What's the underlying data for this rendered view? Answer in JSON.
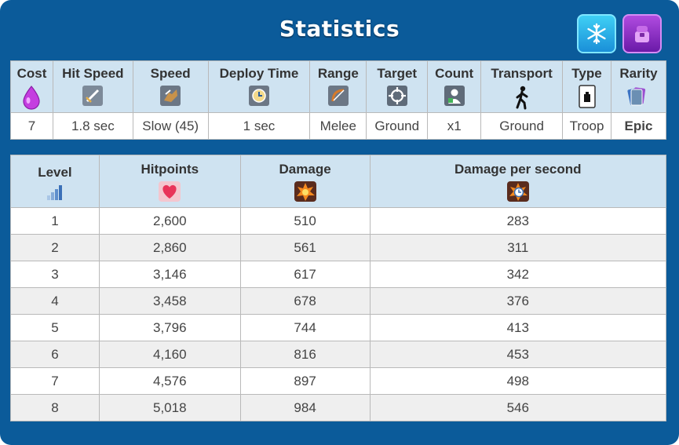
{
  "title": "Statistics",
  "badges": [
    {
      "name": "freeze-icon",
      "color": "#2aaee8"
    },
    {
      "name": "epic-chest-icon",
      "color": "#8a2bc8"
    }
  ],
  "stats": {
    "headers": [
      "Cost",
      "Hit Speed",
      "Speed",
      "Deploy Time",
      "Range",
      "Target",
      "Count",
      "Transport",
      "Type",
      "Rarity"
    ],
    "values": [
      "7",
      "1.8 sec",
      "Slow (45)",
      "1 sec",
      "Melee",
      "Ground",
      "x1",
      "Ground",
      "Troop",
      "Epic"
    ],
    "icons": [
      "elixir-drop-icon",
      "sword-icon",
      "boot-icon",
      "clock-icon",
      "bow-icon",
      "crosshair-icon",
      "person-icon",
      "walking-icon",
      "card-icon",
      "cards-icon"
    ]
  },
  "levels": {
    "headers": [
      "Level",
      "Hitpoints",
      "Damage",
      "Damage per second"
    ],
    "icons": [
      "signal-bars-icon",
      "heart-icon",
      "explosion-icon",
      "explosion-clock-icon"
    ],
    "rows": [
      [
        "1",
        "2,600",
        "510",
        "283"
      ],
      [
        "2",
        "2,860",
        "561",
        "311"
      ],
      [
        "3",
        "3,146",
        "617",
        "342"
      ],
      [
        "4",
        "3,458",
        "678",
        "376"
      ],
      [
        "5",
        "3,796",
        "744",
        "413"
      ],
      [
        "6",
        "4,160",
        "816",
        "453"
      ],
      [
        "7",
        "4,576",
        "897",
        "498"
      ],
      [
        "8",
        "5,018",
        "984",
        "546"
      ]
    ]
  },
  "colors": {
    "panel": "#0b5b9a",
    "header_bg": "#cfe3f1",
    "type_text": "#2a6fb5",
    "rarity_text": "#a020c0"
  }
}
